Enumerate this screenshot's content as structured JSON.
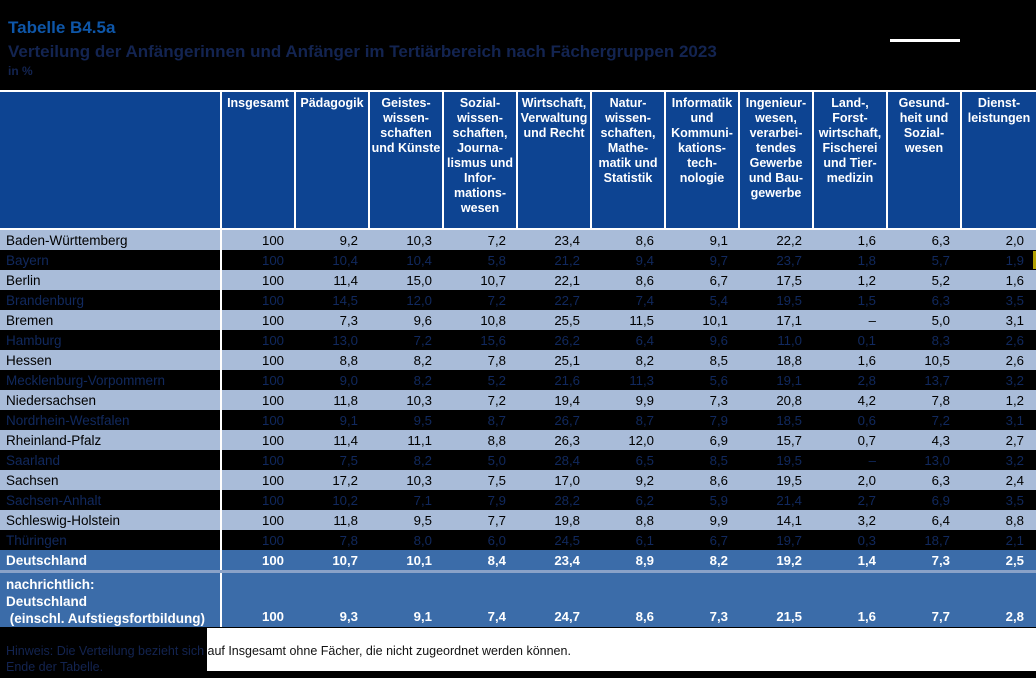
{
  "page": {
    "title": "Tabelle B4.5a",
    "subtitle": "Verteilung der Anfängerinnen und Anfänger im Tertiärbereich nach Fächergruppen 2023",
    "unit_label": "in %"
  },
  "colors": {
    "accent_blue": "#0E56A8",
    "header_bg": "#0D4492",
    "row_light_bg": "#A9BCD9",
    "row_dark_bg": "#000000",
    "row_dark_text": "#11295E",
    "total_row_bg": "#3B6CA9",
    "separator_white": "#FFFFFF",
    "marker_yellow": "#B3A100"
  },
  "table": {
    "corner_label": "",
    "columns": [
      "Insgesamt",
      "Pädagogik",
      "Geistes-\nwissen-\nschaften\nund Künste",
      "Sozial-\nwissen-\nschaften,\nJourna-\nlismus und\nInfor-\nmations-\nwesen",
      "Wirtschaft,\nVerwaltung\nund Recht",
      "Natur-\nwissen-\nschaften,\nMathe-\nmatik und\nStatistik",
      "Informatik\nund\nKommuni-\nkations-\ntech-\nnologie",
      "Ingenieur-\nwesen,\nverarbei-\ntendes\nGewerbe\nund Bau-\ngewerbe",
      "Land-,\nForst-\nwirtschaft,\nFischerei\nund Tier-\nmedizin",
      "Gesund-\nheit und\nSozial-\nwesen",
      "Dienst-\nleistungen"
    ],
    "rows": [
      {
        "label": "Baden-Württemberg",
        "tone": "light",
        "values": [
          "100",
          "9,2",
          "10,3",
          "7,2",
          "23,4",
          "8,6",
          "9,1",
          "22,2",
          "1,6",
          "6,3",
          "2,0"
        ]
      },
      {
        "label": "Bayern",
        "tone": "dark",
        "marker": true,
        "values": [
          "100",
          "10,4",
          "10,4",
          "5,8",
          "21,2",
          "9,4",
          "9,7",
          "23,7",
          "1,8",
          "5,7",
          "1,9"
        ]
      },
      {
        "label": "Berlin",
        "tone": "light",
        "values": [
          "100",
          "11,4",
          "15,0",
          "10,7",
          "22,1",
          "8,6",
          "6,7",
          "17,5",
          "1,2",
          "5,2",
          "1,6"
        ]
      },
      {
        "label": "Brandenburg",
        "tone": "dark",
        "values": [
          "100",
          "14,5",
          "12,0",
          "7,2",
          "22,7",
          "7,4",
          "5,4",
          "19,5",
          "1,5",
          "6,3",
          "3,5"
        ]
      },
      {
        "label": "Bremen",
        "tone": "light",
        "values": [
          "100",
          "7,3",
          "9,6",
          "10,8",
          "25,5",
          "11,5",
          "10,1",
          "17,1",
          "–",
          "5,0",
          "3,1"
        ]
      },
      {
        "label": "Hamburg",
        "tone": "dark",
        "values": [
          "100",
          "13,0",
          "7,2",
          "15,6",
          "26,2",
          "6,4",
          "9,6",
          "11,0",
          "0,1",
          "8,3",
          "2,6"
        ]
      },
      {
        "label": "Hessen",
        "tone": "light",
        "values": [
          "100",
          "8,8",
          "8,2",
          "7,8",
          "25,1",
          "8,2",
          "8,5",
          "18,8",
          "1,6",
          "10,5",
          "2,6"
        ]
      },
      {
        "label": "Mecklenburg-Vorpommern",
        "tone": "dark",
        "values": [
          "100",
          "9,0",
          "8,2",
          "5,2",
          "21,6",
          "11,3",
          "5,6",
          "19,1",
          "2,8",
          "13,7",
          "3,2"
        ]
      },
      {
        "label": "Niedersachsen",
        "tone": "light",
        "values": [
          "100",
          "11,8",
          "10,3",
          "7,2",
          "19,4",
          "9,9",
          "7,3",
          "20,8",
          "4,2",
          "7,8",
          "1,2"
        ]
      },
      {
        "label": "Nordrhein-Westfalen",
        "tone": "dark",
        "values": [
          "100",
          "9,1",
          "9,5",
          "8,7",
          "26,7",
          "8,7",
          "7,9",
          "18,5",
          "0,6",
          "7,2",
          "3,1"
        ]
      },
      {
        "label": "Rheinland-Pfalz",
        "tone": "light",
        "values": [
          "100",
          "11,4",
          "11,1",
          "8,8",
          "26,3",
          "12,0",
          "6,9",
          "15,7",
          "0,7",
          "4,3",
          "2,7"
        ]
      },
      {
        "label": "Saarland",
        "tone": "dark",
        "values": [
          "100",
          "7,5",
          "8,2",
          "5,0",
          "28,4",
          "6,5",
          "8,5",
          "19,5",
          "–",
          "13,0",
          "3,2"
        ]
      },
      {
        "label": "Sachsen",
        "tone": "light",
        "values": [
          "100",
          "17,2",
          "10,3",
          "7,5",
          "17,0",
          "9,2",
          "8,6",
          "19,5",
          "2,0",
          "6,3",
          "2,4"
        ]
      },
      {
        "label": "Sachsen-Anhalt",
        "tone": "dark",
        "values": [
          "100",
          "10,2",
          "7,1",
          "7,9",
          "28,2",
          "6,2",
          "5,9",
          "21,4",
          "2,7",
          "6,9",
          "3,5"
        ]
      },
      {
        "label": "Schleswig-Holstein",
        "tone": "light",
        "values": [
          "100",
          "11,8",
          "9,5",
          "7,7",
          "19,8",
          "8,8",
          "9,9",
          "14,1",
          "3,2",
          "6,4",
          "8,8"
        ]
      },
      {
        "label": "Thüringen",
        "tone": "dark",
        "values": [
          "100",
          "7,8",
          "8,0",
          "6,0",
          "24,5",
          "6,1",
          "6,7",
          "19,7",
          "0,3",
          "18,7",
          "2,1"
        ]
      },
      {
        "label": "Deutschland",
        "tone": "total",
        "values": [
          "100",
          "10,7",
          "10,1",
          "8,4",
          "23,4",
          "8,9",
          "8,2",
          "19,2",
          "1,4",
          "7,3",
          "2,5"
        ]
      }
    ],
    "memo_row": {
      "label": "nachrichtlich:\nDeutschland\n (einschl. Aufstiegsfortbildung)",
      "values": [
        "100",
        "9,3",
        "9,1",
        "7,4",
        "24,7",
        "8,6",
        "7,3",
        "21,5",
        "1,6",
        "7,7",
        "2,8"
      ]
    }
  },
  "footnotes": {
    "hint": "Hinweis: Die Verteilung bezieht sich auf Insgesamt ohne Fächer, die nicht zugeordnet werden können.",
    "end": "Ende der Tabelle."
  }
}
